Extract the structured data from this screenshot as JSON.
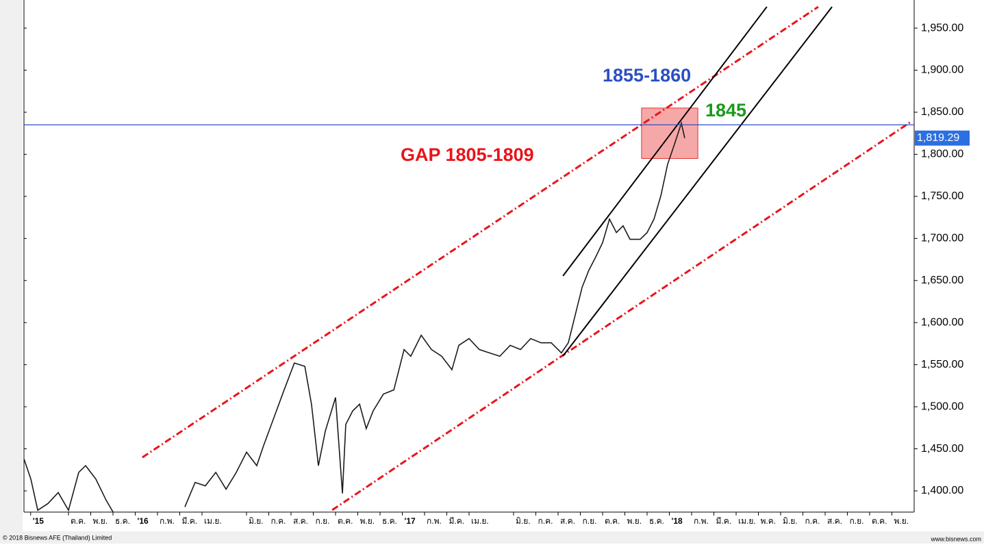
{
  "chart_data": {
    "type": "line",
    "color": "#1a1a1a",
    "x": [
      -5.0,
      -4.69,
      -4.38,
      -3.92,
      -3.46,
      -3.0,
      -2.54,
      -2.23,
      -1.77,
      -1.31,
      -1.0,
      -0.5,
      2.23,
      2.69,
      3.15,
      3.62,
      4.08,
      4.54,
      5.0,
      5.46,
      5.77,
      6.23,
      6.69,
      7.15,
      7.62,
      7.92,
      8.23,
      8.54,
      9.0,
      9.31,
      9.46,
      9.77,
      10.08,
      10.38,
      10.69,
      11.15,
      11.62,
      12.08,
      12.38,
      12.85,
      13.31,
      13.77,
      14.23,
      14.54,
      15.0,
      15.46,
      15.92,
      16.38,
      16.85,
      17.31,
      17.77,
      18.23,
      18.69,
      19.15,
      19.46,
      19.77,
      20.08,
      20.38,
      20.69,
      21.0,
      21.31,
      21.62,
      21.92,
      22.23,
      22.69,
      23.0,
      23.31,
      23.62,
      23.92,
      24.23,
      24.54,
      24.69
    ],
    "values": [
      1438,
      1414,
      1377,
      1385,
      1398,
      1377,
      1422,
      1430,
      1414,
      1389,
      1375,
      null,
      1381,
      1410,
      1406,
      1422,
      1402,
      1422,
      1446,
      1430,
      1454,
      1487,
      1520,
      1552,
      1548,
      1503,
      1430,
      1471,
      1511,
      1397,
      1479,
      1495,
      1503,
      1474,
      1495,
      1515,
      1520,
      1568,
      1560,
      1585,
      1568,
      1560,
      1544,
      1573,
      1581,
      1568,
      1564,
      1560,
      1573,
      1568,
      1581,
      1576,
      1576,
      1564,
      1576,
      1609,
      1642,
      1662,
      1678,
      1695,
      1723,
      1707,
      1715,
      1699,
      1699,
      1707,
      1723,
      1751,
      1788,
      1812,
      1837,
      1819.29
    ],
    "last_label": "1,819.29",
    "last_value": 1819.29,
    "hline": 1835,
    "xlim": [
      -5,
      35
    ],
    "ylim": [
      1374.8,
      1983.4
    ],
    "xticks": [
      {
        "value": -4.7,
        "label": "'15"
      },
      {
        "value": -3,
        "label": "ต.ค."
      },
      {
        "value": -2,
        "label": "พ.ย."
      },
      {
        "value": -1,
        "label": "ธ.ค."
      },
      {
        "value": 0,
        "label": "'16"
      },
      {
        "value": 1,
        "label": "ก.พ."
      },
      {
        "value": 2,
        "label": "มี.ค."
      },
      {
        "value": 3,
        "label": "เม.ย."
      },
      {
        "value": 5,
        "label": "มิ.ย."
      },
      {
        "value": 6,
        "label": "ก.ค."
      },
      {
        "value": 7,
        "label": "ส.ค."
      },
      {
        "value": 8,
        "label": "ก.ย."
      },
      {
        "value": 9,
        "label": "ต.ค."
      },
      {
        "value": 10,
        "label": "พ.ย."
      },
      {
        "value": 11,
        "label": "ธ.ค."
      },
      {
        "value": 12,
        "label": "'17"
      },
      {
        "value": 13,
        "label": "ก.พ."
      },
      {
        "value": 14,
        "label": "มี.ค."
      },
      {
        "value": 15,
        "label": "เม.ย."
      },
      {
        "value": 17,
        "label": "มิ.ย."
      },
      {
        "value": 18,
        "label": "ก.ค."
      },
      {
        "value": 19,
        "label": "ส.ค."
      },
      {
        "value": 20,
        "label": "ก.ย."
      },
      {
        "value": 21,
        "label": "ต.ค."
      },
      {
        "value": 22,
        "label": "พ.ย."
      },
      {
        "value": 23,
        "label": "ธ.ค."
      },
      {
        "value": 24,
        "label": "'18"
      },
      {
        "value": 25,
        "label": "ก.พ."
      },
      {
        "value": 26,
        "label": "มี.ค."
      },
      {
        "value": 27,
        "label": "เม.ย."
      },
      {
        "value": 28,
        "label": "พ.ค."
      },
      {
        "value": 29,
        "label": "มิ.ย."
      },
      {
        "value": 30,
        "label": "ก.ค."
      },
      {
        "value": 31,
        "label": "ส.ค."
      },
      {
        "value": 32,
        "label": "ก.ย."
      },
      {
        "value": 33,
        "label": "ต.ค."
      },
      {
        "value": 34,
        "label": "พ.ย."
      }
    ],
    "yticks": [
      {
        "value": 1400,
        "label": "1,400.00"
      },
      {
        "value": 1450,
        "label": "1,450.00"
      },
      {
        "value": 1500,
        "label": "1,500.00"
      },
      {
        "value": 1550,
        "label": "1,550.00"
      },
      {
        "value": 1600,
        "label": "1,600.00"
      },
      {
        "value": 1650,
        "label": "1,650.00"
      },
      {
        "value": 1700,
        "label": "1,700.00"
      },
      {
        "value": 1750,
        "label": "1,750.00"
      },
      {
        "value": 1800,
        "label": "1,800.00"
      },
      {
        "value": 1850,
        "label": "1,850.00"
      },
      {
        "value": 1900,
        "label": "1,900.00"
      },
      {
        "value": 1950,
        "label": "1,950.00"
      }
    ],
    "trendlines": [
      {
        "x1": 0.32,
        "y1": 1439.8,
        "x2": 30.69,
        "y2": 1975.3,
        "color": "#e8141a",
        "dash": true
      },
      {
        "x1": 8.85,
        "y1": 1377.2,
        "x2": 34.85,
        "y2": 1838.6,
        "color": "#e8141a",
        "dash": true
      },
      {
        "x1": 19.22,
        "y1": 1655.5,
        "x2": 28.38,
        "y2": 1975.3,
        "color": "#000000",
        "dash": false
      },
      {
        "x1": 19.22,
        "y1": 1560.3,
        "x2": 31.31,
        "y2": 1975.3,
        "color": "#000000",
        "dash": false
      }
    ],
    "box": {
      "x1": 22.75,
      "x2": 25.28,
      "y1": 1795,
      "y2": 1855
    },
    "annotations": [
      {
        "text": "1855-1860",
        "color": "#2b4fc4"
      },
      {
        "text": "1845",
        "color": "#1a9a1a"
      },
      {
        "text": "GAP 1805-1809",
        "color": "#e8141a"
      }
    ],
    "copyright": "© 2018 Bisnews AFE (Thailand) Limited",
    "website": "www.bisnews.com"
  }
}
